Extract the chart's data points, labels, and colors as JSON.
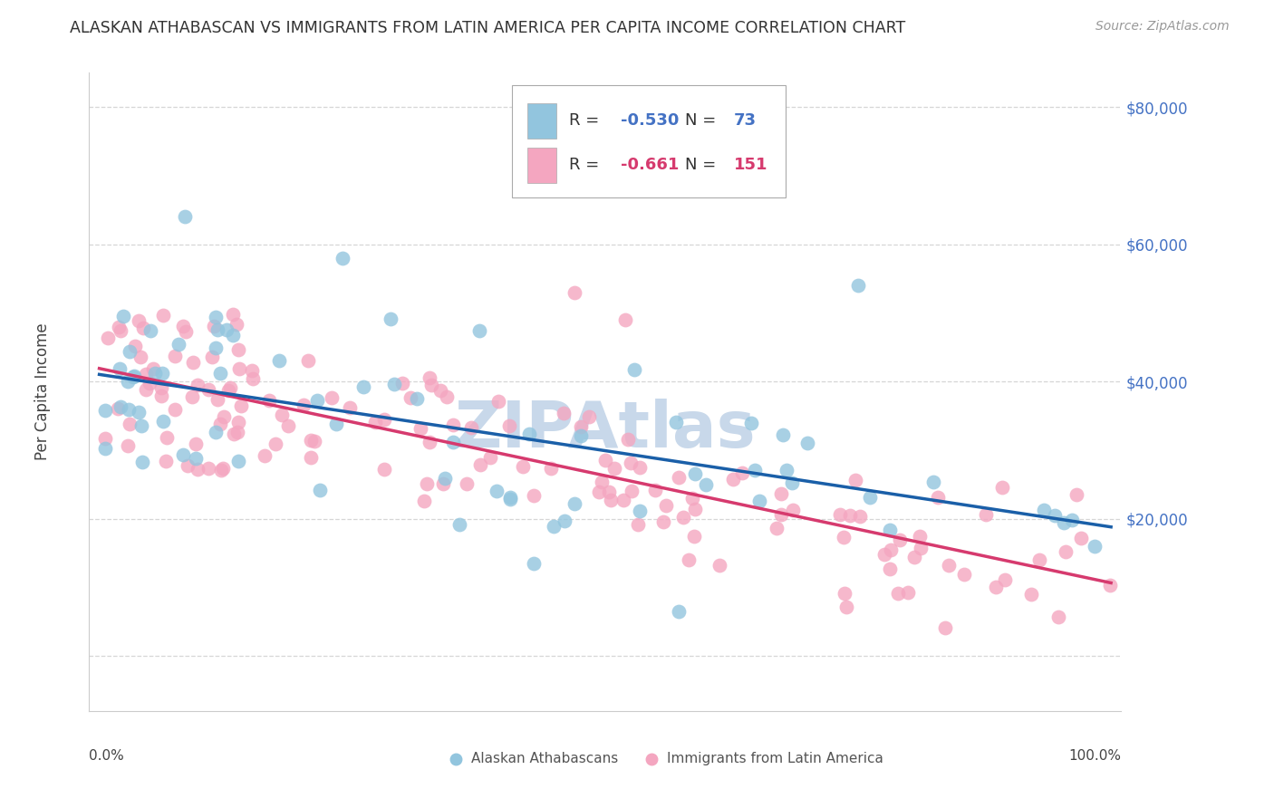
{
  "title": "ALASKAN ATHABASCAN VS IMMIGRANTS FROM LATIN AMERICA PER CAPITA INCOME CORRELATION CHART",
  "source": "Source: ZipAtlas.com",
  "ylabel": "Per Capita Income",
  "ymax": 85000,
  "ymin": -8000,
  "xmin": -0.01,
  "xmax": 1.01,
  "color_blue": "#92c5de",
  "color_pink": "#f4a6c0",
  "color_blue_line": "#1a5fa8",
  "color_pink_line": "#d63a6e",
  "color_ytick": "#4472C4",
  "watermark": "ZIPAtlas",
  "watermark_color": "#c8d8ea",
  "grid_color": "#cccccc",
  "blue_r": "-0.530",
  "blue_n": "73",
  "pink_r": "-0.661",
  "pink_n": "151"
}
